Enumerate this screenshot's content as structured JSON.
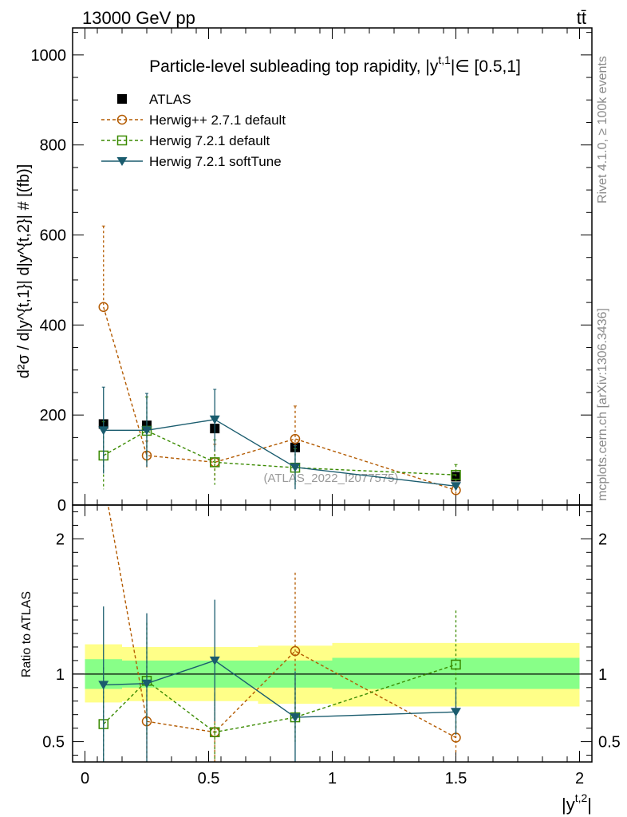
{
  "header": {
    "energy": "13000 GeV pp",
    "process": "tt̄"
  },
  "side": {
    "rivet": "Rivet 4.1.0, ≥ 100k events",
    "mcplots": "mcplots.cern.ch [arXiv:1306.3436]"
  },
  "chart_data": {
    "type": "line",
    "title": "Particle-level subleading top rapidity, |y^{t,1}| ∈ [0.5,1]",
    "title_parts": {
      "pre": "Particle-level subleading top rapidity, |y",
      "sup": "t,1",
      "post": "|∈ [0.5,1]"
    },
    "watermark": "(ATLAS_2022_I2077575)",
    "ylabel_main": "d²σ / d|y^{t,1}| d|y^{t,2}| # [(fb)]",
    "ylabel_ratio": "Ratio to ATLAS",
    "xlabel": "|y^{t,2}|",
    "xlabel_parts": {
      "base": "|y",
      "sup": "t,2",
      "end": "|"
    },
    "xlim": [
      -0.05,
      2.05
    ],
    "main_ylim": [
      0,
      1060
    ],
    "ratio_ylim": [
      0.35,
      2.25
    ],
    "x_ticks": [
      0,
      0.5,
      1,
      1.5,
      2
    ],
    "x_tick_labels": [
      "0",
      "0.5",
      "1",
      "1.5",
      "2"
    ],
    "main_y_ticks": [
      0,
      200,
      400,
      600,
      800,
      1000
    ],
    "main_y_tick_labels": [
      "0",
      "200",
      "400",
      "600",
      "800",
      "1000"
    ],
    "ratio_y_ticks": [
      0.5,
      1,
      2
    ],
    "ratio_y_tick_labels": [
      "0.5",
      "1",
      "2"
    ],
    "bin_edges": [
      0,
      0.15,
      0.35,
      0.7,
      1.0,
      2.0
    ],
    "band_inner": [
      [
        0.89,
        1.11
      ],
      [
        0.9,
        1.1
      ],
      [
        0.9,
        1.1
      ],
      [
        0.9,
        1.1
      ],
      [
        0.89,
        1.12
      ]
    ],
    "band_outer": [
      [
        0.79,
        1.22
      ],
      [
        0.8,
        1.2
      ],
      [
        0.8,
        1.2
      ],
      [
        0.78,
        1.21
      ],
      [
        0.76,
        1.23
      ]
    ],
    "legend": [
      {
        "name": "ATLAS"
      },
      {
        "name": "Herwig++ 2.7.1 default"
      },
      {
        "name": "Herwig 7.2.1 default"
      },
      {
        "name": "Herwig 7.2.1 softTune"
      }
    ],
    "series": [
      {
        "name": "ATLAS",
        "color": "#000000",
        "marker": "square-filled",
        "line": "none",
        "x": [
          0.075,
          0.25,
          0.525,
          0.85,
          1.5
        ],
        "y": [
          180,
          177,
          170,
          128,
          63
        ]
      },
      {
        "name": "Herwig++ 2.7.1 default",
        "color": "#b35a00",
        "marker": "circle-open",
        "line": "dashed",
        "x": [
          0.075,
          0.25,
          0.525,
          0.85,
          1.5
        ],
        "y": [
          440,
          110,
          95,
          147,
          33
        ],
        "yerr_lo": [
          440,
          78,
          55,
          112,
          25
        ],
        "yerr_hi": [
          620,
          142,
          135,
          220,
          41
        ],
        "ratio": [
          2.44,
          0.65,
          0.57,
          1.17,
          0.53
        ],
        "ratio_lo": [
          2.44,
          0.2,
          0.2,
          0.6,
          0.4
        ],
        "ratio_hi": [
          2.5,
          0.75,
          0.9,
          1.75,
          0.65
        ]
      },
      {
        "name": "Herwig 7.2.1 default",
        "color": "#3a8a00",
        "marker": "square-open",
        "line": "dashed",
        "x": [
          0.075,
          0.25,
          0.525,
          0.85,
          1.5
        ],
        "y": [
          110,
          165,
          95,
          83,
          67
        ],
        "yerr_lo": [
          35,
          90,
          45,
          40,
          45
        ],
        "yerr_hi": [
          185,
          240,
          145,
          125,
          90
        ],
        "ratio": [
          0.63,
          0.95,
          0.57,
          0.68,
          1.07
        ],
        "ratio_lo": [
          0.25,
          0.55,
          0.25,
          0.5,
          0.6
        ],
        "ratio_hi": [
          1.05,
          1.38,
          0.85,
          0.9,
          1.47
        ]
      },
      {
        "name": "Herwig 7.2.1 softTune",
        "color": "#1a5c6e",
        "marker": "triangle-down",
        "line": "solid",
        "x": [
          0.075,
          0.25,
          0.525,
          0.85,
          1.5
        ],
        "y": [
          166,
          166,
          190,
          84,
          42
        ],
        "yerr_lo": [
          70,
          85,
          120,
          35,
          35
        ],
        "yerr_hi": [
          262,
          248,
          257,
          132,
          49
        ],
        "ratio": [
          0.92,
          0.93,
          1.1,
          0.68,
          0.72
        ],
        "ratio_lo": [
          0.35,
          0.35,
          0.65,
          0.35,
          0.55
        ],
        "ratio_hi": [
          1.5,
          1.45,
          1.55,
          1.02,
          0.9
        ]
      }
    ]
  }
}
